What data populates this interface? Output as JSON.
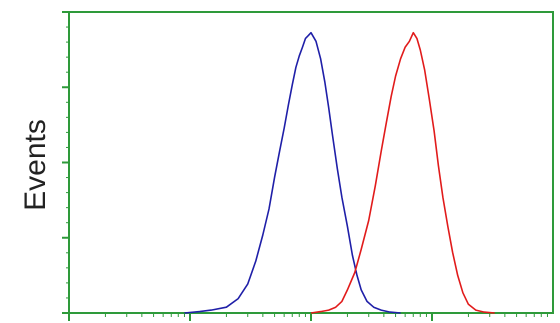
{
  "chart_data": {
    "type": "line",
    "title": "",
    "xlabel": "",
    "ylabel": "Events",
    "x_scale": "log",
    "xlim": [
      1,
      10000
    ],
    "ylim": [
      0,
      100
    ],
    "grid": false,
    "legend": "none",
    "axis_color": "#2e9a3a",
    "series": [
      {
        "color": "#1f1fa8",
        "points": [
          [
            9,
            0
          ],
          [
            12,
            0.5
          ],
          [
            15,
            1
          ],
          [
            20,
            2
          ],
          [
            25,
            5
          ],
          [
            30,
            10
          ],
          [
            35,
            18
          ],
          [
            40,
            27
          ],
          [
            45,
            36
          ],
          [
            50,
            47
          ],
          [
            55,
            56
          ],
          [
            60,
            64
          ],
          [
            65,
            72
          ],
          [
            70,
            79
          ],
          [
            75,
            85
          ],
          [
            80,
            89
          ],
          [
            85,
            92
          ],
          [
            90,
            95
          ],
          [
            95,
            96
          ],
          [
            100,
            97
          ],
          [
            110,
            94
          ],
          [
            120,
            88
          ],
          [
            130,
            80
          ],
          [
            140,
            71
          ],
          [
            150,
            62
          ],
          [
            165,
            50
          ],
          [
            180,
            40
          ],
          [
            200,
            30
          ],
          [
            220,
            20
          ],
          [
            240,
            13
          ],
          [
            260,
            8
          ],
          [
            290,
            4
          ],
          [
            330,
            2
          ],
          [
            380,
            1
          ],
          [
            450,
            0.3
          ],
          [
            550,
            0
          ]
        ]
      },
      {
        "color": "#e11b1b",
        "points": [
          [
            100,
            0
          ],
          [
            120,
            0.5
          ],
          [
            140,
            1
          ],
          [
            160,
            2
          ],
          [
            180,
            4
          ],
          [
            200,
            8
          ],
          [
            230,
            14
          ],
          [
            260,
            22
          ],
          [
            300,
            32
          ],
          [
            340,
            44
          ],
          [
            380,
            56
          ],
          [
            420,
            66
          ],
          [
            460,
            75
          ],
          [
            500,
            82
          ],
          [
            550,
            88
          ],
          [
            600,
            92
          ],
          [
            650,
            94
          ],
          [
            700,
            97
          ],
          [
            750,
            95
          ],
          [
            800,
            91
          ],
          [
            870,
            84
          ],
          [
            950,
            74
          ],
          [
            1040,
            63
          ],
          [
            1130,
            51
          ],
          [
            1230,
            40
          ],
          [
            1350,
            30
          ],
          [
            1480,
            21
          ],
          [
            1630,
            13
          ],
          [
            1800,
            7
          ],
          [
            2000,
            3
          ],
          [
            2300,
            1
          ],
          [
            2700,
            0.3
          ],
          [
            3300,
            0
          ]
        ]
      }
    ]
  }
}
